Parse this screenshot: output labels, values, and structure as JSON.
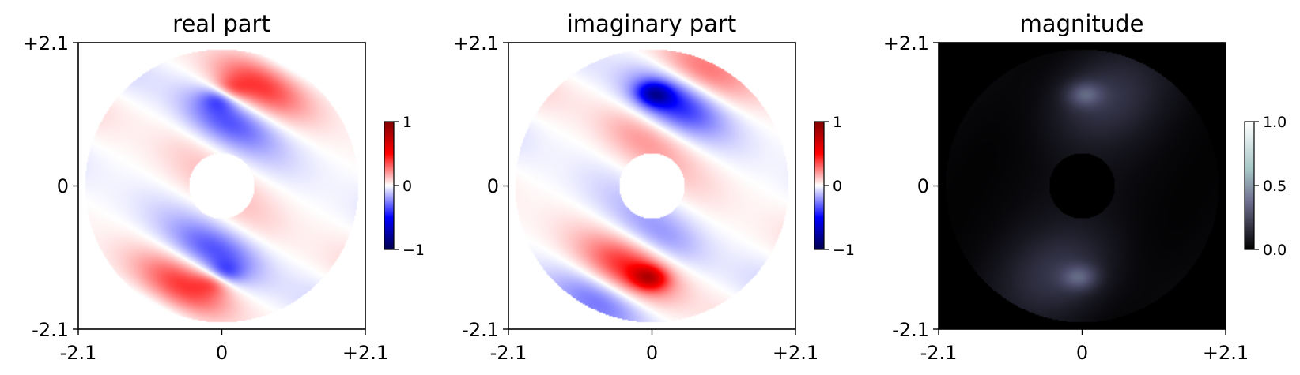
{
  "chart_data": [
    {
      "type": "heatmap",
      "title": "real part",
      "colormap": "seismic",
      "xticks": [
        "-2.1",
        "0",
        "+2.1"
      ],
      "yticks": [
        "+2.1",
        "0",
        "-2.1"
      ],
      "xlim": [
        -2.1,
        2.1
      ],
      "ylim": [
        -2.1,
        2.1
      ],
      "colorbar": {
        "ticks": [
          "1",
          "0",
          "−1"
        ],
        "range": [
          -1,
          1
        ]
      },
      "field": {
        "outer_radius": 2.0,
        "inner_radius": 0.48,
        "component": "real"
      }
    },
    {
      "type": "heatmap",
      "title": "imaginary part",
      "colormap": "seismic",
      "xticks": [
        "-2.1",
        "0",
        "+2.1"
      ],
      "yticks": [
        "+2.1",
        "0",
        "-2.1"
      ],
      "xlim": [
        -2.1,
        2.1
      ],
      "ylim": [
        -2.1,
        2.1
      ],
      "colorbar": {
        "ticks": [
          "1",
          "0",
          "−1"
        ],
        "range": [
          -1,
          1
        ]
      },
      "field": {
        "outer_radius": 2.0,
        "inner_radius": 0.48,
        "component": "imaginary"
      }
    },
    {
      "type": "heatmap",
      "title": "magnitude",
      "colormap": "bone",
      "xticks": [
        "-2.1",
        "0",
        "+2.1"
      ],
      "yticks": [
        "+2.1",
        "0",
        "-2.1"
      ],
      "xlim": [
        -2.1,
        2.1
      ],
      "ylim": [
        -2.1,
        2.1
      ],
      "colorbar": {
        "ticks": [
          "1.0",
          "0.5",
          "0.0"
        ],
        "range": [
          0,
          1
        ]
      },
      "field": {
        "outer_radius": 2.0,
        "inner_radius": 0.48,
        "component": "magnitude"
      }
    }
  ]
}
